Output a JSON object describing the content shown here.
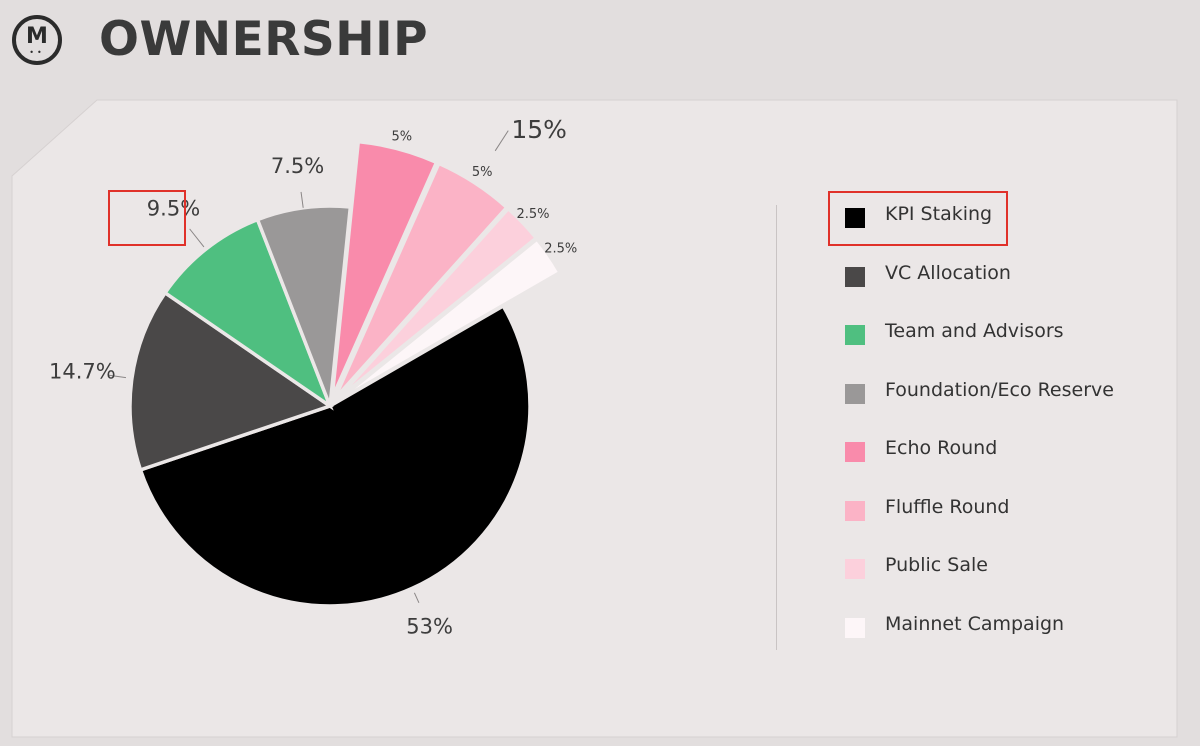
{
  "header": {
    "title": "OWNERSHIP",
    "logo_letter": "M",
    "logo_eyes": "••"
  },
  "colors": {
    "background": "#e2dede",
    "panel": "#ebe7e7",
    "highlight": "#e0312a"
  },
  "chart_data": {
    "type": "pie",
    "series": [
      {
        "name": "KPI Staking",
        "value": 53,
        "label": "53%",
        "color": "#000000"
      },
      {
        "name": "VC Allocation",
        "value": 14.7,
        "label": "14.7%",
        "color": "#4a4848"
      },
      {
        "name": "Team and Advisors",
        "value": 9.5,
        "label": "9.5%",
        "color": "#4fbf80"
      },
      {
        "name": "Foundation/Eco Reserve",
        "value": 7.5,
        "label": "7.5%",
        "color": "#9a9898"
      },
      {
        "name": "Echo Round",
        "value": 5,
        "label": "5%",
        "color": "#f98bab",
        "exploded": true
      },
      {
        "name": "Fluffle Round",
        "value": 5,
        "label": "5%",
        "color": "#fbb3c6",
        "exploded": true
      },
      {
        "name": "Public Sale",
        "value": 2.5,
        "label": "2.5%",
        "color": "#fcd0dc",
        "exploded": true
      },
      {
        "name": "Mainnet Campaign",
        "value": 2.5,
        "label": "2.5%",
        "color": "#fdf6f8",
        "exploded": true
      }
    ],
    "group_annotation": "15%",
    "legend_position": "right"
  }
}
